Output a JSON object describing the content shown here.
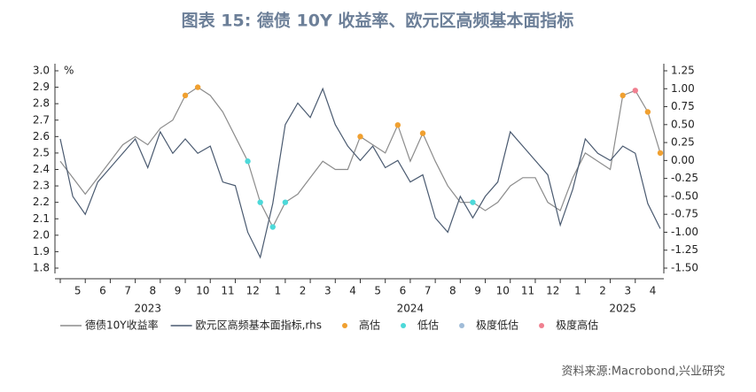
{
  "chart_data": {
    "type": "line",
    "title": "图表 15:  德债 10Y 收益率、欧元区高频基本面指标",
    "y_unit": "%",
    "source": "资料来源:Macrobond,兴业研究",
    "categories": [
      null,
      "5",
      null,
      "6",
      null,
      "7",
      null,
      "8",
      null,
      "9",
      null,
      "10",
      null,
      "11",
      null,
      "12",
      null,
      "1",
      null,
      "2",
      null,
      "3",
      null,
      "4",
      null,
      "5",
      null,
      "6",
      null,
      "7",
      null,
      "8",
      null,
      "9",
      null,
      "10",
      null,
      "11",
      null,
      "12",
      null,
      "1",
      null,
      "2",
      null,
      "3",
      null,
      "4",
      null
    ],
    "year_labels": [
      {
        "label": "2023",
        "category": 7
      },
      {
        "label": "2024",
        "category": 28
      },
      {
        "label": "2025",
        "category": 45
      }
    ],
    "ylim": [
      1.8,
      3.0
    ],
    "yticks": [
      {
        "value": 1.8,
        "label": "1.8"
      },
      {
        "value": 1.9,
        "label": "1.9"
      },
      {
        "value": 2.0,
        "label": "2.0"
      },
      {
        "value": 2.1,
        "label": "2.1"
      },
      {
        "value": 2.2,
        "label": "2.2"
      },
      {
        "value": 2.3,
        "label": "2.3"
      },
      {
        "value": 2.4,
        "label": "2.4"
      },
      {
        "value": 2.5,
        "label": "2.5"
      },
      {
        "value": 2.6,
        "label": "2.6"
      },
      {
        "value": 2.7,
        "label": "2.7"
      },
      {
        "value": 2.8,
        "label": "2.8"
      },
      {
        "value": 2.9,
        "label": "2.9"
      },
      {
        "value": 3.0,
        "label": "3.0"
      }
    ],
    "y2lim": [
      -1.5,
      1.25
    ],
    "y2ticks": [
      {
        "value": -1.5,
        "label": "-1.50"
      },
      {
        "value": -1.25,
        "label": "-1.25"
      },
      {
        "value": -1.0,
        "label": "-1.00"
      },
      {
        "value": -0.75,
        "label": "-0.75"
      },
      {
        "value": -0.5,
        "label": "-0.50"
      },
      {
        "value": -0.25,
        "label": "-0.25"
      },
      {
        "value": 0,
        "label": "0.00"
      },
      {
        "value": 0.25,
        "label": "0.25"
      },
      {
        "value": 0.5,
        "label": "0.50"
      },
      {
        "value": 0.75,
        "label": "0.75"
      },
      {
        "value": 1.0,
        "label": "1.00"
      },
      {
        "value": 1.25,
        "label": "1.25"
      }
    ],
    "series": [
      {
        "name": "德债10Y收益率",
        "color": "#8c8c8c",
        "kind": "line",
        "values": [
          2.45,
          2.35,
          2.25,
          2.35,
          2.45,
          2.55,
          2.6,
          2.55,
          2.65,
          2.7,
          2.85,
          2.9,
          2.85,
          2.75,
          2.6,
          2.45,
          2.2,
          2.05,
          2.2,
          2.25,
          2.35,
          2.45,
          2.4,
          2.4,
          2.6,
          2.55,
          2.5,
          2.67,
          2.45,
          2.62,
          2.45,
          2.3,
          2.2,
          2.2,
          2.15,
          2.2,
          2.3,
          2.35,
          2.35,
          2.2,
          2.15,
          2.35,
          2.5,
          2.45,
          2.4,
          2.85,
          2.88,
          2.75,
          2.5
        ]
      },
      {
        "name": "欧元区高频基本面指标,rhs",
        "color": "#4a5a70",
        "kind": "line",
        "axis": "y2",
        "values": [
          0.3,
          -0.5,
          -0.75,
          -0.3,
          -0.1,
          0.1,
          0.3,
          -0.1,
          0.4,
          0.1,
          0.3,
          0.1,
          0.2,
          -0.3,
          -0.35,
          -1.0,
          -1.35,
          -0.6,
          0.5,
          0.8,
          0.6,
          1.0,
          0.5,
          0.2,
          0.0,
          0.2,
          -0.1,
          0.0,
          -0.3,
          -0.2,
          -0.8,
          -1.0,
          -0.5,
          -0.8,
          -0.5,
          -0.3,
          0.4,
          0.2,
          0.0,
          -0.2,
          -0.9,
          -0.4,
          0.3,
          0.1,
          0.0,
          0.2,
          0.1,
          -0.6,
          -0.95
        ]
      },
      {
        "name": "高估",
        "color": "#f0a030",
        "kind": "dot",
        "values": [
          null,
          null,
          null,
          null,
          null,
          null,
          null,
          null,
          null,
          null,
          2.85,
          2.9,
          null,
          null,
          null,
          null,
          null,
          null,
          null,
          null,
          null,
          null,
          null,
          null,
          2.6,
          null,
          null,
          2.67,
          null,
          2.62,
          null,
          null,
          null,
          null,
          null,
          null,
          null,
          null,
          null,
          null,
          null,
          null,
          null,
          null,
          null,
          2.85,
          null,
          2.75,
          2.5
        ]
      },
      {
        "name": "低估",
        "color": "#4dd9d9",
        "kind": "dot",
        "values": [
          null,
          null,
          null,
          null,
          null,
          null,
          null,
          null,
          null,
          null,
          null,
          null,
          null,
          null,
          null,
          2.45,
          2.2,
          2.05,
          2.2,
          null,
          null,
          null,
          null,
          null,
          null,
          null,
          null,
          null,
          null,
          null,
          null,
          null,
          null,
          2.2,
          null,
          null,
          null,
          null,
          null,
          null,
          null,
          null,
          null,
          null,
          null,
          null,
          null,
          null,
          null
        ]
      },
      {
        "name": "极度低估",
        "color": "#a0bcd8",
        "kind": "dot",
        "values": [
          null,
          null,
          null,
          null,
          null,
          null,
          null,
          null,
          null,
          null,
          null,
          null,
          null,
          null,
          null,
          null,
          null,
          null,
          null,
          null,
          null,
          null,
          null,
          null,
          null,
          null,
          null,
          null,
          null,
          null,
          null,
          null,
          null,
          null,
          null,
          null,
          null,
          null,
          null,
          null,
          null,
          null,
          null,
          null,
          null,
          null,
          null,
          null,
          null
        ]
      },
      {
        "name": "极度高估",
        "color": "#f08090",
        "kind": "dot",
        "values": [
          null,
          null,
          null,
          null,
          null,
          null,
          null,
          null,
          null,
          null,
          null,
          null,
          null,
          null,
          null,
          null,
          null,
          null,
          null,
          null,
          null,
          null,
          null,
          null,
          null,
          null,
          null,
          null,
          null,
          null,
          null,
          null,
          null,
          null,
          null,
          null,
          null,
          null,
          null,
          null,
          null,
          null,
          null,
          null,
          null,
          null,
          2.88,
          null,
          null
        ]
      }
    ]
  }
}
